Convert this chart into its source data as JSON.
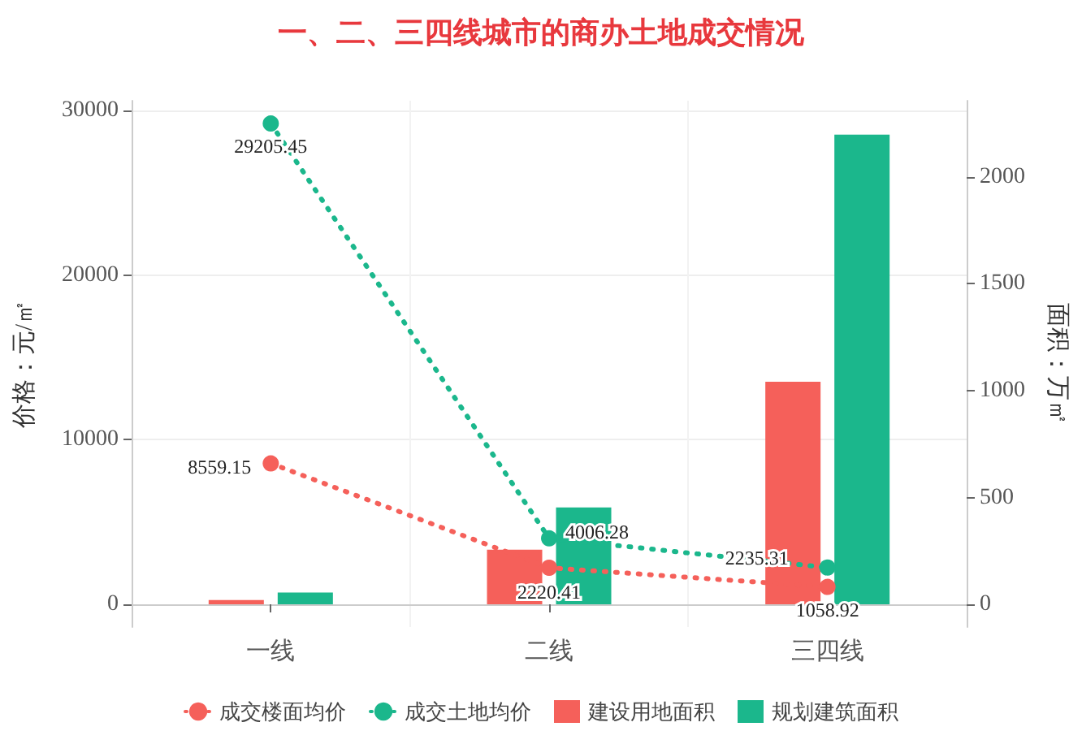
{
  "chart_data": {
    "type": "bar",
    "title": "一、二、三四线城市的商办土地成交情况",
    "categories": [
      "一线",
      "二线",
      "三四线"
    ],
    "ylabel": "价格：元/㎡",
    "y2label": "面积：万㎡",
    "series": [
      {
        "name": "成交楼面均价",
        "type": "line",
        "color": "#f5605a",
        "values": [
          8559.15,
          2220.41,
          1058.92
        ],
        "value_labels": [
          "8559.15",
          "2220.41",
          "1058.92"
        ]
      },
      {
        "name": "成交土地均价",
        "type": "line",
        "color": "#1bb78c",
        "values": [
          29205.45,
          4006.28,
          2235.31
        ],
        "value_labels": [
          "29205.45",
          "4006.28",
          "2235.31"
        ]
      },
      {
        "name": "建设用地面积",
        "axis": "y2",
        "color": "#f5605a",
        "values": [
          20,
          256,
          1042
        ]
      },
      {
        "name": "规划建筑面积",
        "axis": "y2",
        "color": "#1bb78c",
        "values": [
          56,
          454,
          2198
        ]
      }
    ],
    "ylim": [
      -1380,
      30590
    ],
    "yticks": [
      0,
      10000,
      20000,
      30000
    ],
    "y2lim": [
      -106,
      2357
    ],
    "y2ticks": [
      0,
      500,
      1000,
      1500,
      2000
    ],
    "marker": "circle",
    "line_style": "dotted",
    "grid": true,
    "legend": "bottom"
  }
}
